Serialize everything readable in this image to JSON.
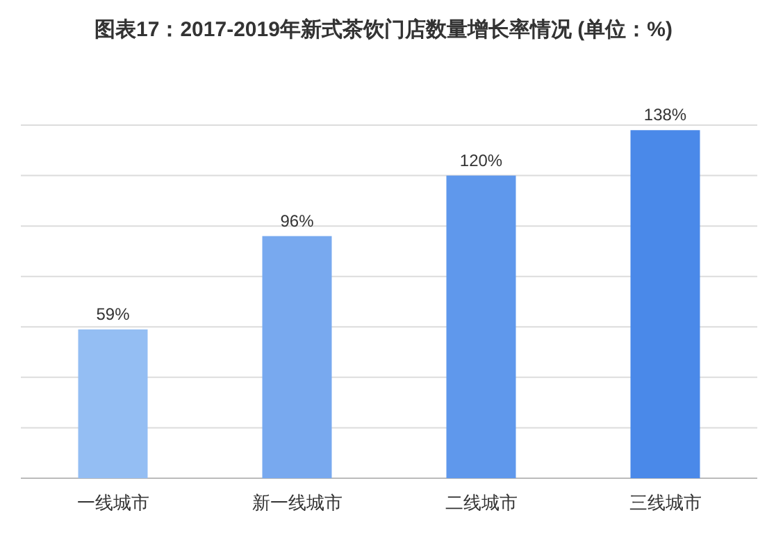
{
  "chart_data": {
    "type": "bar",
    "title": "图表17：2017-2019年新式茶饮门店数量增长率情况 (单位：%)",
    "categories": [
      "一线城市",
      "新一线城市",
      "二线城市",
      "三线城市"
    ],
    "values": [
      59,
      96,
      120,
      138
    ],
    "value_labels": [
      "59%",
      "96%",
      "120%",
      "138%"
    ],
    "colors": [
      "#94bef3",
      "#78a9ef",
      "#5f98ec",
      "#4a89e9"
    ],
    "ylim": [
      0,
      140
    ],
    "yticks": [
      {
        "value": 0,
        "label": null
      },
      {
        "value": 20,
        "label": null
      },
      {
        "value": 40,
        "label": null
      },
      {
        "value": 60,
        "label": null
      },
      {
        "value": 80,
        "label": null
      },
      {
        "value": 100,
        "label": null
      },
      {
        "value": 120,
        "label": null
      },
      {
        "value": 140,
        "label": null
      }
    ],
    "tick_labels": "x",
    "grid": "y"
  }
}
